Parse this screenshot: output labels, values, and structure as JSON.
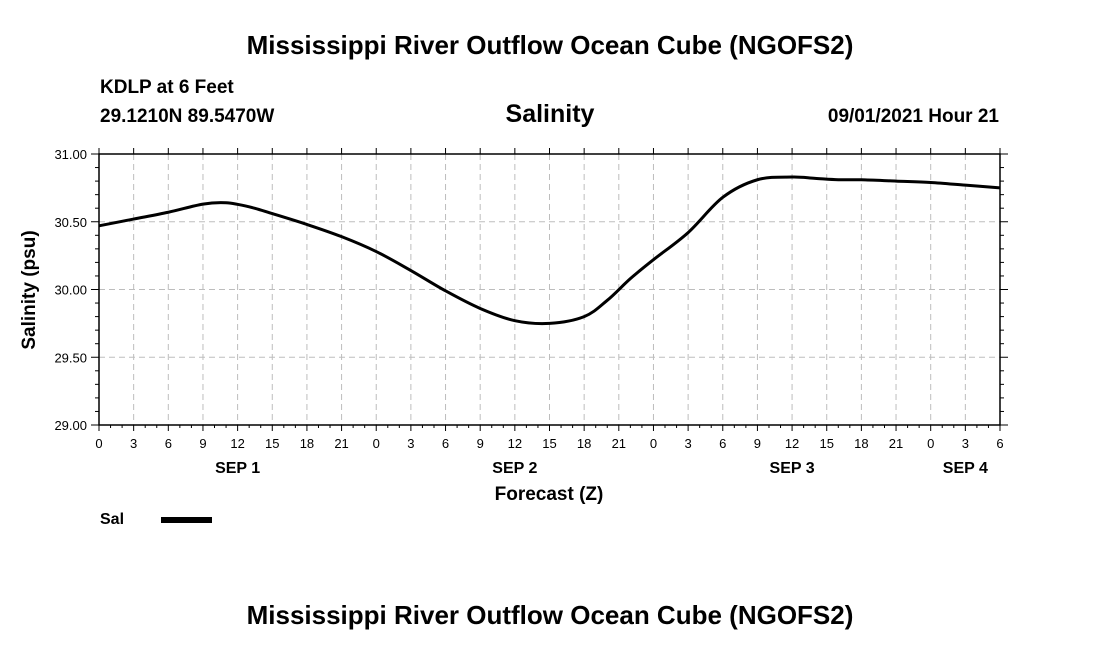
{
  "header": {
    "title": "Mississippi River Outflow Ocean Cube (NGOFS2)",
    "station": "KDLP at 6 Feet",
    "coordinates": "29.1210N  89.5470W",
    "variable": "Salinity",
    "datetime": "09/01/2021 Hour 21"
  },
  "footer": {
    "title": "Mississippi River Outflow Ocean Cube (NGOFS2)"
  },
  "chart_data": {
    "type": "line",
    "title": "Salinity",
    "xlabel": "Forecast (Z)",
    "ylabel": "Salinity (psu)",
    "ylim": [
      29.0,
      31.0
    ],
    "yticks": [
      "29.00",
      "29.50",
      "30.00",
      "30.50",
      "31.00"
    ],
    "xlim_hours": [
      0,
      78
    ],
    "xtick_labels": [
      "0",
      "3",
      "6",
      "9",
      "12",
      "15",
      "18",
      "21",
      "0",
      "3",
      "6",
      "9",
      "12",
      "15",
      "18",
      "21",
      "0",
      "3",
      "6",
      "9",
      "12",
      "15",
      "18",
      "21",
      "0",
      "3",
      "6"
    ],
    "day_labels": [
      {
        "label": "SEP 1",
        "hour": 12
      },
      {
        "label": "SEP 2",
        "hour": 36
      },
      {
        "label": "SEP 3",
        "hour": 60
      },
      {
        "label": "SEP 4",
        "hour": 75
      }
    ],
    "grid": true,
    "series": [
      {
        "name": "Sal",
        "x": [
          0,
          3,
          6,
          9,
          11,
          13,
          15,
          18,
          21,
          24,
          27,
          30,
          33,
          36,
          39,
          42,
          44,
          46,
          48,
          51,
          54,
          57,
          60,
          62,
          64,
          66,
          69,
          72,
          75,
          78
        ],
        "values": [
          30.47,
          30.52,
          30.57,
          30.63,
          30.64,
          30.61,
          30.56,
          30.48,
          30.39,
          30.28,
          30.14,
          29.99,
          29.86,
          29.77,
          29.75,
          29.8,
          29.92,
          30.08,
          30.22,
          30.42,
          30.68,
          30.81,
          30.83,
          30.82,
          30.81,
          30.81,
          30.8,
          30.79,
          30.77,
          30.75
        ]
      }
    ],
    "legend": [
      {
        "label": "Sal"
      }
    ]
  }
}
